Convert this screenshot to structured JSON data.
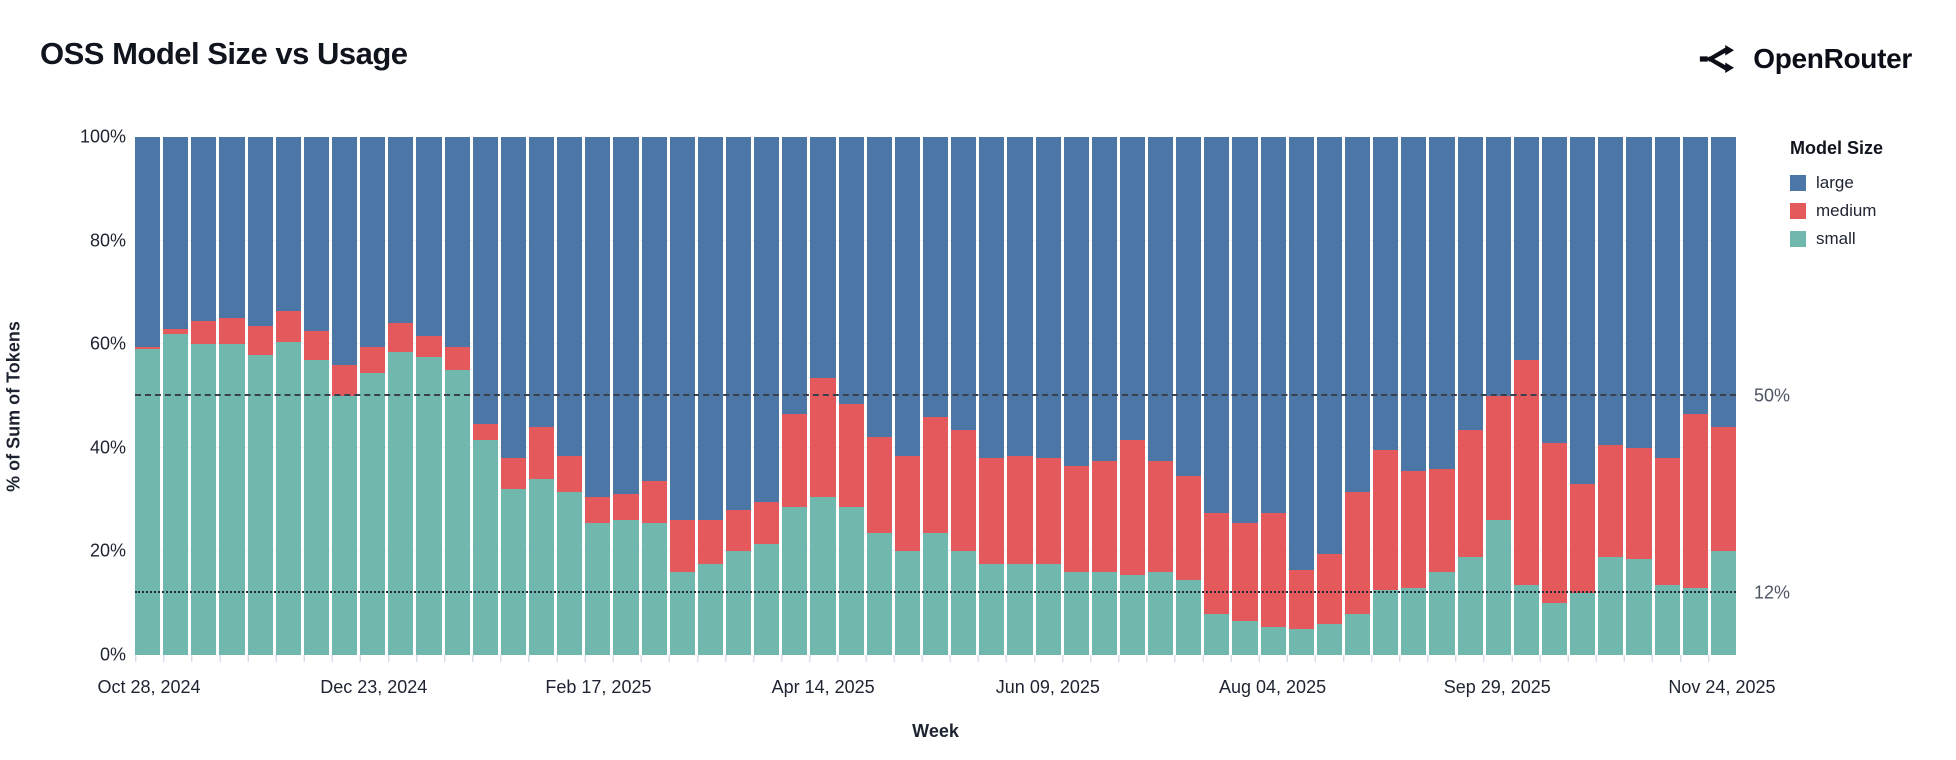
{
  "header": {
    "title": "OSS Model Size vs Usage",
    "brand": "OpenRouter"
  },
  "legend": {
    "title": "Model Size",
    "items": [
      {
        "label": "large",
        "color": "#4c76a5"
      },
      {
        "label": "medium",
        "color": "#e4595b"
      },
      {
        "label": "small",
        "color": "#70b7ae"
      }
    ]
  },
  "axes": {
    "y": {
      "title": "% of Sum of Tokens",
      "ticks": [
        0,
        20,
        40,
        60,
        80,
        100
      ],
      "tick_suffix": "%",
      "range": [
        0,
        100
      ]
    },
    "x": {
      "title": "Week",
      "tick_every": 8,
      "tick_labels": [
        "Oct 28, 2024",
        "Dec 23, 2024",
        "Feb 17, 2025",
        "Apr 14, 2025",
        "Jun 09, 2025",
        "Aug 04, 2025",
        "Sep 29, 2025",
        "Nov 24, 2025"
      ]
    }
  },
  "chart_data": {
    "type": "bar",
    "stacked": true,
    "title": "OSS Model Size vs Usage",
    "xlabel": "Week",
    "ylabel": "% of Sum of Tokens",
    "ylim": [
      0,
      100
    ],
    "grid": "horizontal-faint",
    "legend_position": "right",
    "categories": [
      "Oct 28, 2024",
      "Nov 04, 2024",
      "Nov 11, 2024",
      "Nov 18, 2024",
      "Nov 25, 2024",
      "Dec 02, 2024",
      "Dec 09, 2024",
      "Dec 16, 2024",
      "Dec 23, 2024",
      "Dec 30, 2024",
      "Jan 06, 2025",
      "Jan 13, 2025",
      "Jan 20, 2025",
      "Jan 27, 2025",
      "Feb 03, 2025",
      "Feb 10, 2025",
      "Feb 17, 2025",
      "Feb 24, 2025",
      "Mar 03, 2025",
      "Mar 10, 2025",
      "Mar 17, 2025",
      "Mar 24, 2025",
      "Mar 31, 2025",
      "Apr 07, 2025",
      "Apr 14, 2025",
      "Apr 21, 2025",
      "Apr 28, 2025",
      "May 05, 2025",
      "May 12, 2025",
      "May 19, 2025",
      "May 26, 2025",
      "Jun 02, 2025",
      "Jun 09, 2025",
      "Jun 16, 2025",
      "Jun 23, 2025",
      "Jun 30, 2025",
      "Jul 07, 2025",
      "Jul 14, 2025",
      "Jul 21, 2025",
      "Jul 28, 2025",
      "Aug 04, 2025",
      "Aug 11, 2025",
      "Aug 18, 2025",
      "Aug 25, 2025",
      "Sep 01, 2025",
      "Sep 08, 2025",
      "Sep 15, 2025",
      "Sep 22, 2025",
      "Sep 29, 2025",
      "Oct 06, 2025",
      "Oct 13, 2025",
      "Oct 20, 2025",
      "Oct 27, 2025",
      "Nov 03, 2025",
      "Nov 10, 2025",
      "Nov 17, 2025",
      "Nov 24, 2025"
    ],
    "series": [
      {
        "name": "small",
        "color": "#70b7ae",
        "values": [
          59,
          62,
          60,
          60,
          58,
          60.5,
          57,
          50,
          54.5,
          58.5,
          57.5,
          55,
          41.5,
          32,
          34,
          31.5,
          25.5,
          26,
          25.5,
          16,
          17.5,
          20,
          21.5,
          28.5,
          30.5,
          28.5,
          23.5,
          20,
          23.5,
          20,
          17.5,
          17.5,
          17.5,
          16,
          16,
          15.5,
          16,
          14.5,
          8,
          6.5,
          5.5,
          5,
          6,
          8,
          12.5,
          13,
          16,
          19,
          26,
          13.5,
          10,
          12,
          19,
          18.5,
          13.5,
          13,
          20
        ]
      },
      {
        "name": "medium",
        "color": "#e4595b",
        "values": [
          0.5,
          1,
          4.5,
          5,
          5.5,
          6,
          5.5,
          6,
          5,
          5.5,
          4,
          4.5,
          3,
          6,
          10,
          7,
          5,
          5,
          8,
          10,
          8.5,
          8,
          8,
          18,
          23,
          20,
          18.5,
          18.5,
          22.5,
          23.5,
          20.5,
          21,
          20.5,
          20.5,
          21.5,
          26,
          21.5,
          20,
          19.5,
          19,
          22,
          11.5,
          13.5,
          23.5,
          27,
          22.5,
          20,
          24.5,
          24,
          43.5,
          31,
          21,
          21.5,
          21.5,
          24.5,
          33.5,
          24
        ]
      },
      {
        "name": "large",
        "color": "#4c76a5",
        "values": [
          40.5,
          37,
          35.5,
          35,
          36.5,
          33.5,
          37.5,
          44,
          40.5,
          36,
          38.5,
          40.5,
          55.5,
          62,
          56,
          61.5,
          69.5,
          69,
          66.5,
          74,
          74,
          72,
          70.5,
          53.5,
          46.5,
          51.5,
          58,
          61.5,
          54,
          56.5,
          62,
          61.5,
          62,
          63.5,
          62.5,
          58.5,
          62.5,
          65.5,
          72.5,
          74.5,
          72.5,
          83.5,
          80.5,
          68.5,
          60.5,
          64.5,
          64,
          56.5,
          50,
          43,
          59,
          67,
          59.5,
          60,
          62,
          53.5,
          56
        ]
      }
    ],
    "reference_lines": [
      {
        "value": 50,
        "label": "50%",
        "style": "dashed"
      },
      {
        "value": 12,
        "label": "12%",
        "style": "dotted"
      }
    ]
  },
  "colors": {
    "background": "#ffffff",
    "gridline": "#edf0f6",
    "minor_tick": "#d9dfe9",
    "ref_dashed": "#39404e",
    "ref_dotted": "#242b3a",
    "axis_text": "#1d2330",
    "annotation_text": "#4d5565"
  }
}
